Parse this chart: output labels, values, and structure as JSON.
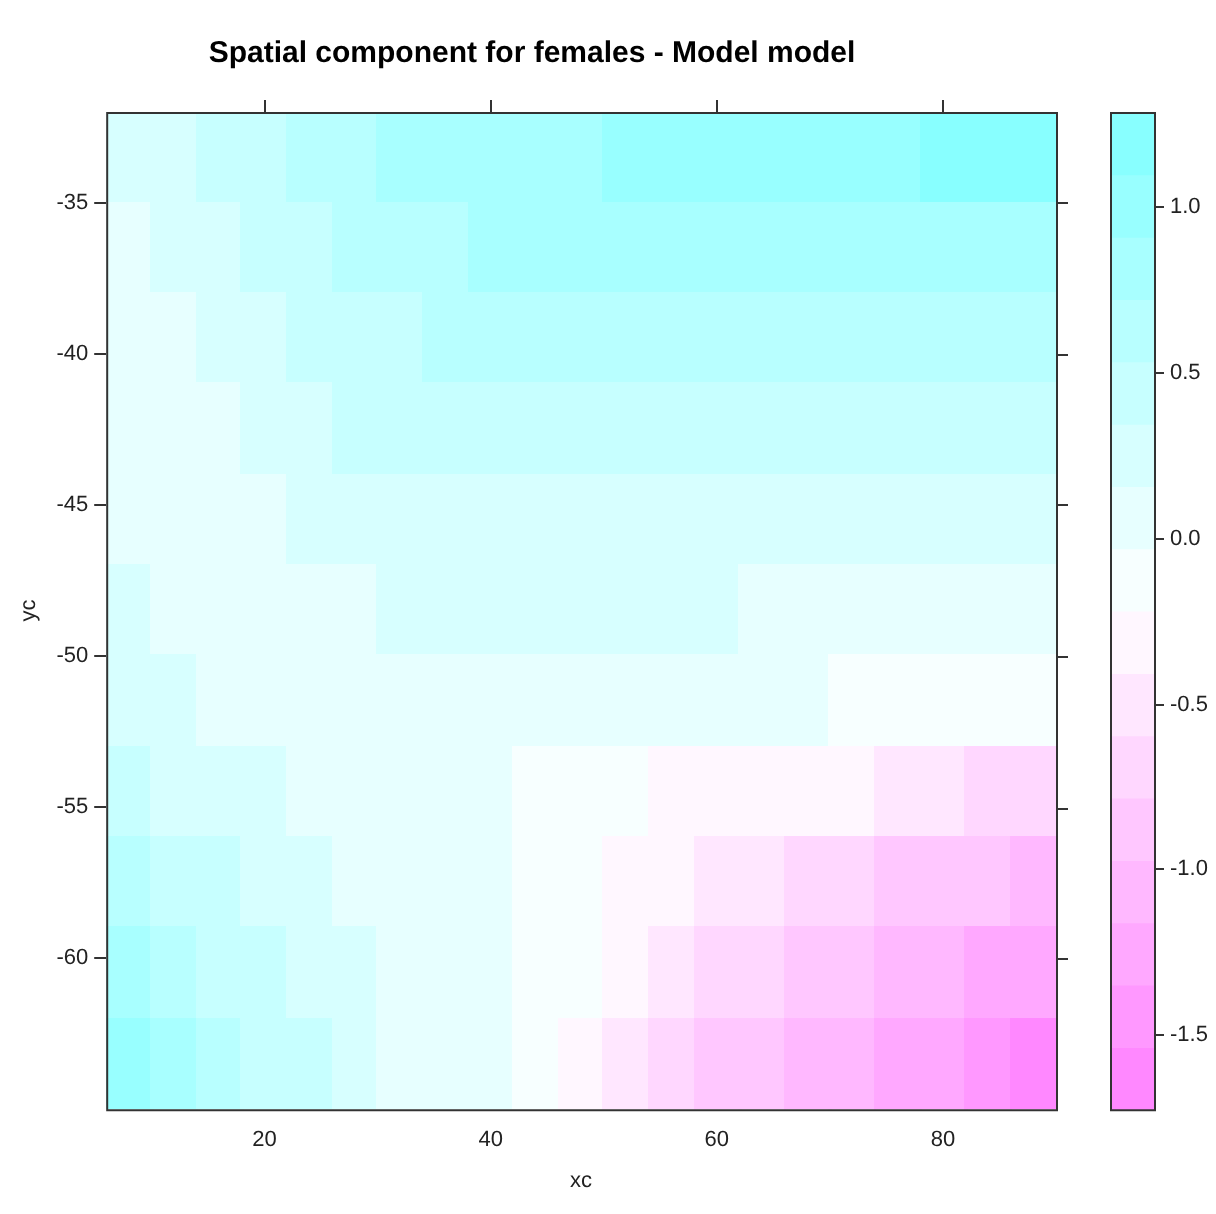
{
  "chart_data": {
    "type": "heatmap",
    "title": "Spatial component for females - Model model",
    "xlabel": "xc",
    "ylabel": "yc",
    "x": [
      8,
      12,
      16,
      20,
      24,
      28,
      32,
      36,
      40,
      44,
      48,
      52,
      56,
      60,
      64,
      68,
      72,
      76,
      80,
      84,
      88
    ],
    "y": [
      -33.5,
      -36.5,
      -39.5,
      -42.5,
      -45.5,
      -48.5,
      -51.5,
      -54.5,
      -57.5,
      -60.5,
      -63.5
    ],
    "xlim": [
      6,
      90
    ],
    "ylim": [
      -65,
      -32
    ],
    "xticks": [
      20,
      40,
      60,
      80
    ],
    "yticks": [
      -35,
      -40,
      -45,
      -50,
      -55,
      -60
    ],
    "clim": [
      -1.725,
      1.284
    ],
    "cticks": [
      -1.5,
      {
        "value": -1,
        "label": "-1.0"
      },
      -0.5,
      {
        "value": 0,
        "label": "0.0"
      },
      0.5,
      {
        "value": 1,
        "label": "1.0"
      }
    ],
    "grid": false,
    "cells": [
      [
        0.2,
        0.3,
        0.4,
        0.5,
        0.6,
        0.7,
        0.8,
        0.8,
        0.9,
        0.9,
        0.9,
        1.0,
        1.0,
        1.0,
        1.0,
        1.0,
        1.0,
        1.0,
        1.1,
        1.1,
        1.1
      ],
      [
        0.1,
        0.2,
        0.3,
        0.4,
        0.5,
        0.6,
        0.6,
        0.7,
        0.8,
        0.8,
        0.8,
        0.8,
        0.8,
        0.8,
        0.9,
        0.9,
        0.9,
        0.9,
        0.9,
        0.9,
        0.9
      ],
      [
        0.1,
        0.1,
        0.2,
        0.3,
        0.4,
        0.5,
        0.5,
        0.6,
        0.6,
        0.6,
        0.6,
        0.6,
        0.6,
        0.6,
        0.6,
        0.7,
        0.7,
        0.7,
        0.7,
        0.7,
        0.7
      ],
      [
        0.1,
        0.1,
        0.1,
        0.2,
        0.3,
        0.4,
        0.4,
        0.4,
        0.4,
        0.4,
        0.4,
        0.4,
        0.4,
        0.4,
        0.5,
        0.5,
        0.5,
        0.5,
        0.5,
        0.5,
        0.5
      ],
      [
        0.1,
        0.1,
        0.1,
        0.1,
        0.2,
        0.2,
        0.2,
        0.3,
        0.3,
        0.2,
        0.2,
        0.2,
        0.2,
        0.2,
        0.2,
        0.2,
        0.2,
        0.2,
        0.2,
        0.2,
        0.2
      ],
      [
        0.2,
        0.1,
        0.1,
        0.1,
        0.1,
        0.1,
        0.2,
        0.2,
        0.2,
        0.2,
        0.2,
        0.2,
        0.2,
        0.2,
        0.1,
        0.1,
        0.1,
        0.1,
        0.1,
        0.0,
        0.0
      ],
      [
        0.2,
        0.2,
        0.1,
        0.1,
        0.1,
        0.0,
        0.0,
        0.0,
        0.0,
        0.0,
        0.0,
        0.0,
        0.0,
        0.0,
        0.0,
        0.0,
        -0.1,
        -0.1,
        -0.1,
        -0.2,
        -0.2
      ],
      [
        0.4,
        0.3,
        0.2,
        0.2,
        0.1,
        0.1,
        0.0,
        0.0,
        0.0,
        -0.1,
        -0.2,
        -0.2,
        -0.3,
        -0.3,
        -0.3,
        -0.4,
        -0.4,
        -0.5,
        -0.5,
        -0.6,
        -0.6
      ],
      [
        0.6,
        0.5,
        0.4,
        0.3,
        0.2,
        0.1,
        0.1,
        0.0,
        0.0,
        -0.1,
        -0.2,
        -0.3,
        -0.4,
        -0.5,
        -0.5,
        -0.6,
        -0.7,
        -0.8,
        -0.8,
        -0.9,
        -1.0
      ],
      [
        0.8,
        0.6,
        0.5,
        0.4,
        0.3,
        0.2,
        0.1,
        0.1,
        0.0,
        -0.1,
        -0.2,
        -0.4,
        -0.5,
        -0.6,
        -0.7,
        -0.8,
        -0.9,
        -1.0,
        -1.1,
        -1.2,
        -1.3
      ],
      [
        1.0,
        0.8,
        0.7,
        0.5,
        0.4,
        0.2,
        0.1,
        0.1,
        0.0,
        -0.1,
        -0.3,
        -0.5,
        -0.6,
        -0.8,
        -0.9,
        -1.0,
        -1.1,
        -1.2,
        -1.3,
        -1.5,
        -1.6
      ]
    ]
  }
}
